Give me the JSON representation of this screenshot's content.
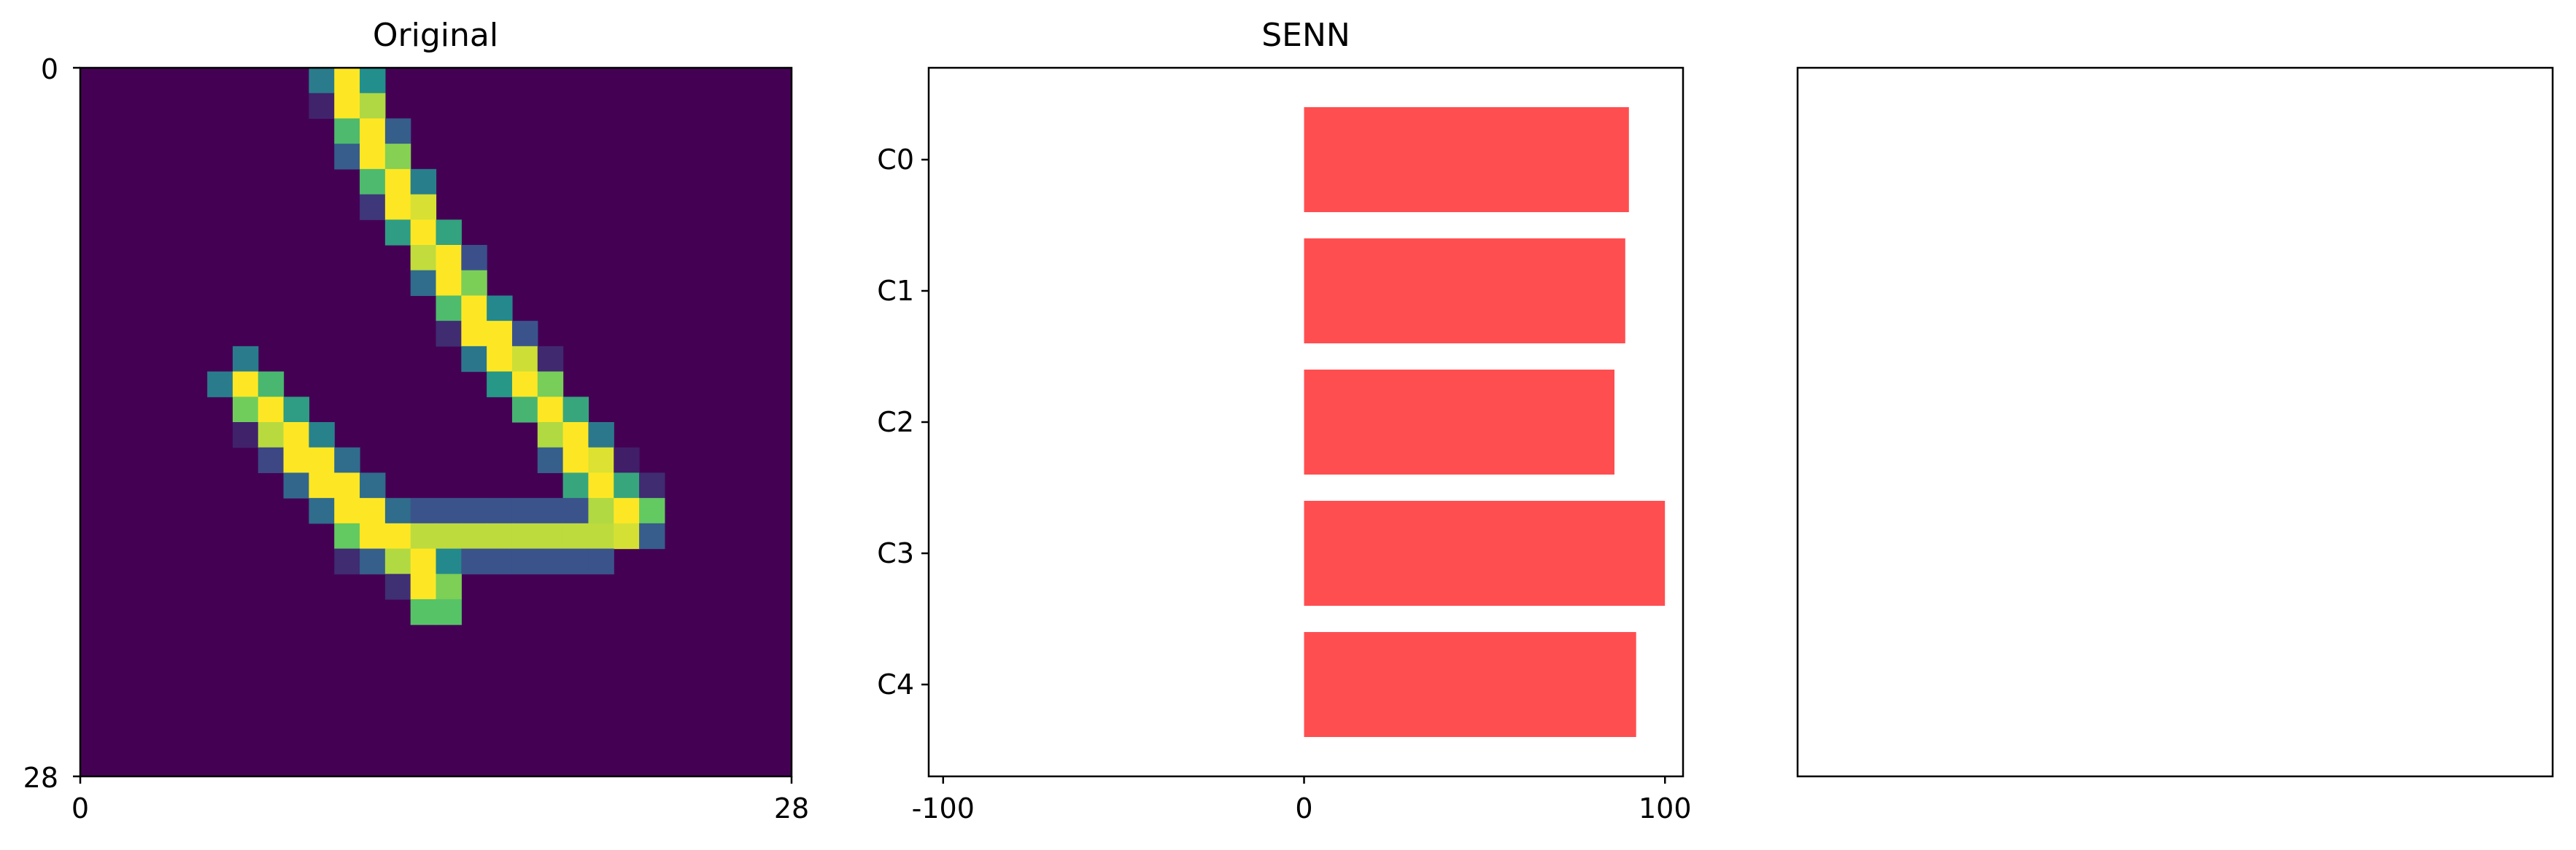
{
  "chart_data": [
    {
      "type": "heatmap",
      "title": "Original",
      "xlabel": "",
      "ylabel": "",
      "xticks": [
        "0",
        "28"
      ],
      "yticks": [
        "0",
        "28"
      ],
      "xlim": [
        0,
        28
      ],
      "ylim": [
        0,
        28
      ],
      "colormap": "viridis",
      "grid": false,
      "note": "",
      "strokes": [
        {
          "points": [
            [
              10.5,
              0.5
            ],
            [
              11.5,
              3.0
            ],
            [
              13.5,
              6.5
            ],
            [
              16.0,
              10.5
            ],
            [
              18.5,
              13.5
            ],
            [
              20.5,
              16.5
            ],
            [
              21.5,
              18.0
            ]
          ],
          "width": 1.6,
          "value": 1.0
        },
        {
          "points": [
            [
              6.5,
              12.5
            ],
            [
              9.5,
              16.0
            ],
            [
              12.0,
              18.5
            ],
            [
              13.5,
              19.5
            ],
            [
              14.0,
              21.0
            ]
          ],
          "width": 1.6,
          "value": 1.0
        },
        {
          "points": [
            [
              11.0,
              18.5
            ],
            [
              14.0,
              18.5
            ],
            [
              17.5,
              18.5
            ],
            [
              20.5,
              18.5
            ],
            [
              22.0,
              17.5
            ]
          ],
          "width": 1.3,
          "value": 0.9
        },
        {
          "points": [
            [
              19.5,
              14.5
            ],
            [
              20.5,
              16.0
            ]
          ],
          "width": 1.2,
          "value": 0.95
        }
      ]
    },
    {
      "type": "bar",
      "orientation": "horizontal",
      "title": "SENN",
      "xlabel": "",
      "ylabel": "",
      "categories": [
        "C0",
        "C1",
        "C2",
        "C3",
        "C4"
      ],
      "values": [
        90,
        89,
        86,
        100,
        92
      ],
      "color": "#ff4e50",
      "xlim": [
        -104,
        105
      ],
      "xticks": [
        -100,
        0,
        100
      ],
      "xticklabels": [
        "-100",
        "0",
        "100"
      ],
      "grid": false
    },
    {
      "type": "bar",
      "title": "",
      "xlabel": "",
      "ylabel": "",
      "values": [],
      "note": ""
    }
  ]
}
